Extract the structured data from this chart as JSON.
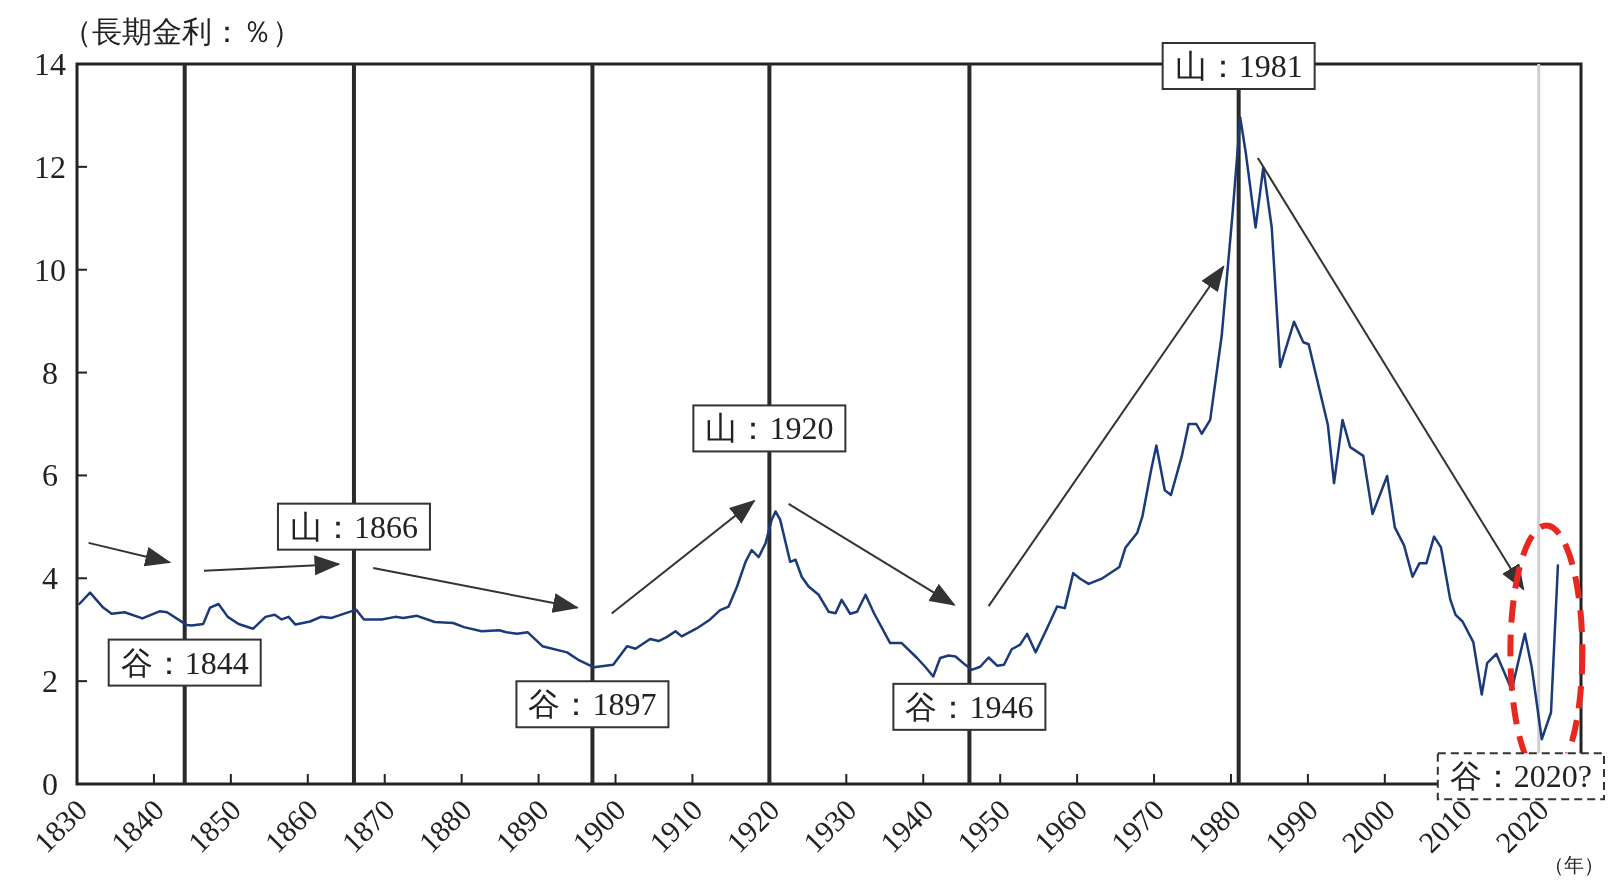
{
  "chart_data": {
    "type": "line",
    "ylabel": "（長期金利：％）",
    "xlabel": "（年）",
    "x": [
      1830.3,
      1831.7,
      1833.4,
      1834.5,
      1836.2,
      1838.5,
      1840.8,
      1841.7,
      1844.3,
      1844.9,
      1846.4,
      1847.3,
      1848.4,
      1849.6,
      1851.0,
      1852.9,
      1854.5,
      1855.7,
      1856.6,
      1857.5,
      1858.4,
      1860.3,
      1861.7,
      1863.1,
      1866.3,
      1867.3,
      1869.6,
      1871.4,
      1872.4,
      1874.2,
      1876.5,
      1878.9,
      1880.3,
      1882.6,
      1884.9,
      1885.8,
      1887.2,
      1888.6,
      1890.5,
      1893.7,
      1895.1,
      1897.2,
      1899.7,
      1901.5,
      1902.6,
      1904.5,
      1905.6,
      1906.7,
      1907.8,
      1908.6,
      1910.6,
      1912.3,
      1913.6,
      1914.7,
      1915.8,
      1916.9,
      1917.7,
      1918.6,
      1919.5,
      1920.3,
      1920.8,
      1921.4,
      1922.7,
      1923.4,
      1924.2,
      1925.1,
      1926.4,
      1927.7,
      1928.6,
      1929.4,
      1930.5,
      1931.4,
      1932.5,
      1933.6,
      1935.7,
      1937.2,
      1939.2,
      1940.3,
      1941.3,
      1942.2,
      1943.3,
      1944.2,
      1945.2,
      1946.3,
      1947.4,
      1948.5,
      1949.6,
      1950.5,
      1951.5,
      1952.6,
      1953.5,
      1954.6,
      1956.1,
      1957.4,
      1958.4,
      1959.5,
      1960.4,
      1961.5,
      1963.3,
      1965.5,
      1966.3,
      1967.8,
      1968.5,
      1969.6,
      1970.3,
      1971.4,
      1972.2,
      1973.6,
      1974.5,
      1975.5,
      1976.2,
      1977.3,
      1978.8,
      1980.2,
      1981.2,
      1981.9,
      1983.2,
      1984.2,
      1985.3,
      1986.4,
      1988.2,
      1989.4,
      1990.1,
      1992.6,
      1993.4,
      1994.5,
      1995.5,
      1997.2,
      1998.4,
      2000.3,
      2001.3,
      2002.5,
      2003.6,
      2004.5,
      2005.4,
      2006.4,
      2007.3,
      2008.5,
      2009.2,
      2010.1,
      2011.5,
      2012.6,
      2013.3,
      2014.5,
      2016.5,
      2018.2,
      2019.1,
      2020.4,
      2021.6,
      2022.5
    ],
    "series": [
      {
        "color": "#1b3a7a",
        "values": [
          3.5,
          3.72,
          3.43,
          3.31,
          3.34,
          3.22,
          3.36,
          3.34,
          3.09,
          3.08,
          3.11,
          3.43,
          3.5,
          3.25,
          3.11,
          3.02,
          3.25,
          3.29,
          3.2,
          3.25,
          3.1,
          3.16,
          3.25,
          3.23,
          3.39,
          3.2,
          3.2,
          3.25,
          3.23,
          3.27,
          3.15,
          3.13,
          3.05,
          2.97,
          2.99,
          2.95,
          2.92,
          2.95,
          2.68,
          2.56,
          2.42,
          2.27,
          2.32,
          2.68,
          2.63,
          2.82,
          2.78,
          2.86,
          2.97,
          2.87,
          3.03,
          3.2,
          3.38,
          3.45,
          3.84,
          4.32,
          4.55,
          4.41,
          4.68,
          5.14,
          5.3,
          5.14,
          4.32,
          4.36,
          4.03,
          3.84,
          3.68,
          3.35,
          3.32,
          3.58,
          3.31,
          3.35,
          3.68,
          3.32,
          2.74,
          2.74,
          2.45,
          2.27,
          2.09,
          2.45,
          2.5,
          2.48,
          2.35,
          2.22,
          2.28,
          2.46,
          2.3,
          2.32,
          2.62,
          2.71,
          2.92,
          2.56,
          3.03,
          3.45,
          3.42,
          4.1,
          3.99,
          3.89,
          4.0,
          4.22,
          4.6,
          4.88,
          5.21,
          6.09,
          6.58,
          5.71,
          5.62,
          6.37,
          7.0,
          7.0,
          6.81,
          7.08,
          8.72,
          11.08,
          12.96,
          12.3,
          10.82,
          11.99,
          10.82,
          8.11,
          8.99,
          8.59,
          8.55,
          6.98,
          5.85,
          7.08,
          6.55,
          6.38,
          5.25,
          5.99,
          4.99,
          4.64,
          4.03,
          4.29,
          4.29,
          4.81,
          4.6,
          3.59,
          3.29,
          3.16,
          2.76,
          1.74,
          2.35,
          2.53,
          1.83,
          2.92,
          2.27,
          0.87,
          1.39,
          4.25
        ]
      }
    ],
    "xlim": [
      1830,
      2025.5
    ],
    "ylim": [
      0,
      14
    ],
    "xticks": [
      1830,
      1840,
      1850,
      1860,
      1870,
      1880,
      1890,
      1900,
      1910,
      1920,
      1930,
      1940,
      1950,
      1960,
      1970,
      1980,
      1990,
      2000,
      2010,
      2020
    ],
    "yticks": [
      0,
      2,
      4,
      6,
      8,
      10,
      12,
      14
    ],
    "ref_lines": [
      {
        "axis": "x",
        "value": 1844,
        "label": "谷：1844"
      },
      {
        "axis": "x",
        "value": 1866,
        "label": "山：1866"
      },
      {
        "axis": "x",
        "value": 1897,
        "label": "谷：1897"
      },
      {
        "axis": "x",
        "value": 1920,
        "label": "山：1920"
      },
      {
        "axis": "x",
        "value": 1946,
        "label": "谷：1946"
      },
      {
        "axis": "x",
        "value": 1981,
        "label": "山：1981"
      },
      {
        "axis": "x",
        "value": 2020,
        "label": "谷：2020?",
        "color": "#d0d0d0"
      }
    ]
  }
}
